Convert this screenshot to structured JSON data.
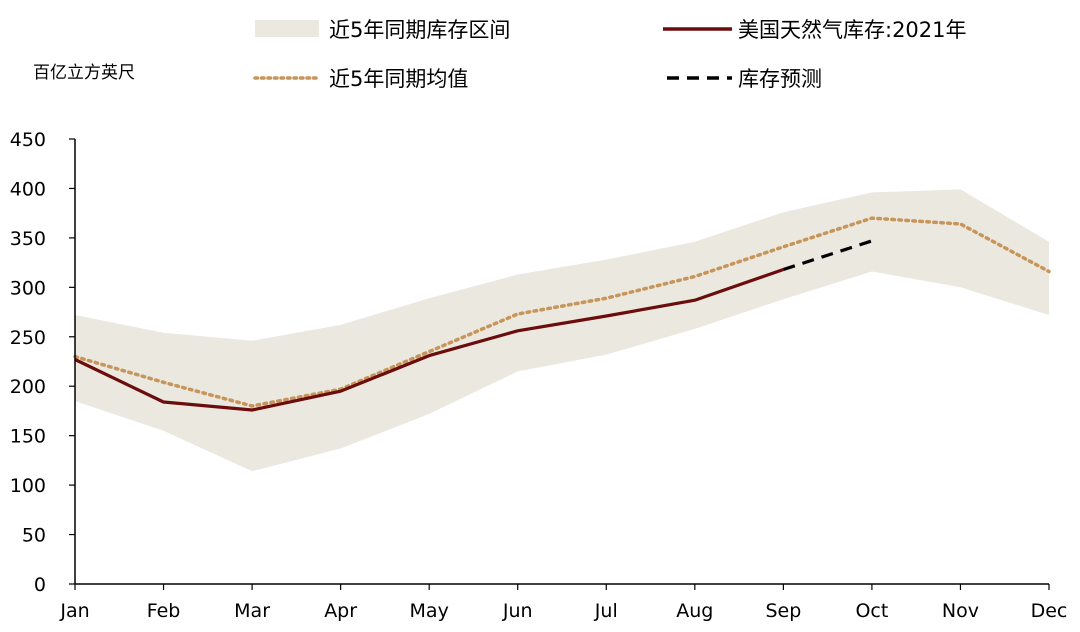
{
  "chart_data": {
    "type": "line",
    "unit_label": "百亿立方英尺",
    "categories": [
      "Jan",
      "Feb",
      "Mar",
      "Apr",
      "May",
      "Jun",
      "Jul",
      "Aug",
      "Sep",
      "Oct",
      "Nov",
      "Dec"
    ],
    "ylim": [
      0,
      450
    ],
    "yticks": [
      0,
      50,
      100,
      150,
      200,
      250,
      300,
      350,
      400,
      450
    ],
    "grid": false,
    "legend": {
      "position": "top",
      "items": {
        "range": "近5年同期库存区间",
        "actual": "美国天然气库存:2021年",
        "average": "近5年同期均值",
        "forecast": "库存预测"
      }
    },
    "band": {
      "name": "近5年同期库存区间",
      "upper": [
        272,
        254,
        246,
        262,
        289,
        313,
        328,
        346,
        376,
        396,
        399,
        346
      ],
      "lower": [
        185,
        155,
        114,
        137,
        172,
        215,
        232,
        258,
        288,
        316,
        300,
        272
      ]
    },
    "series": [
      {
        "name": "近5年同期均值",
        "values": [
          230,
          204,
          180,
          197,
          235,
          273,
          289,
          311,
          341,
          370,
          364,
          316
        ]
      },
      {
        "name": "美国天然气库存:2021年",
        "values": [
          227,
          184,
          176,
          195,
          231,
          256,
          271,
          287,
          318,
          null,
          null,
          null
        ]
      },
      {
        "name": "库存预测",
        "values": [
          null,
          null,
          null,
          null,
          null,
          null,
          null,
          null,
          318,
          347,
          null,
          null
        ]
      }
    ],
    "colors": {
      "band": "#ebe8e0",
      "actual": "#6b0d0d",
      "average": "#c7955a",
      "forecast": "#000000",
      "axis": "#000000"
    }
  }
}
